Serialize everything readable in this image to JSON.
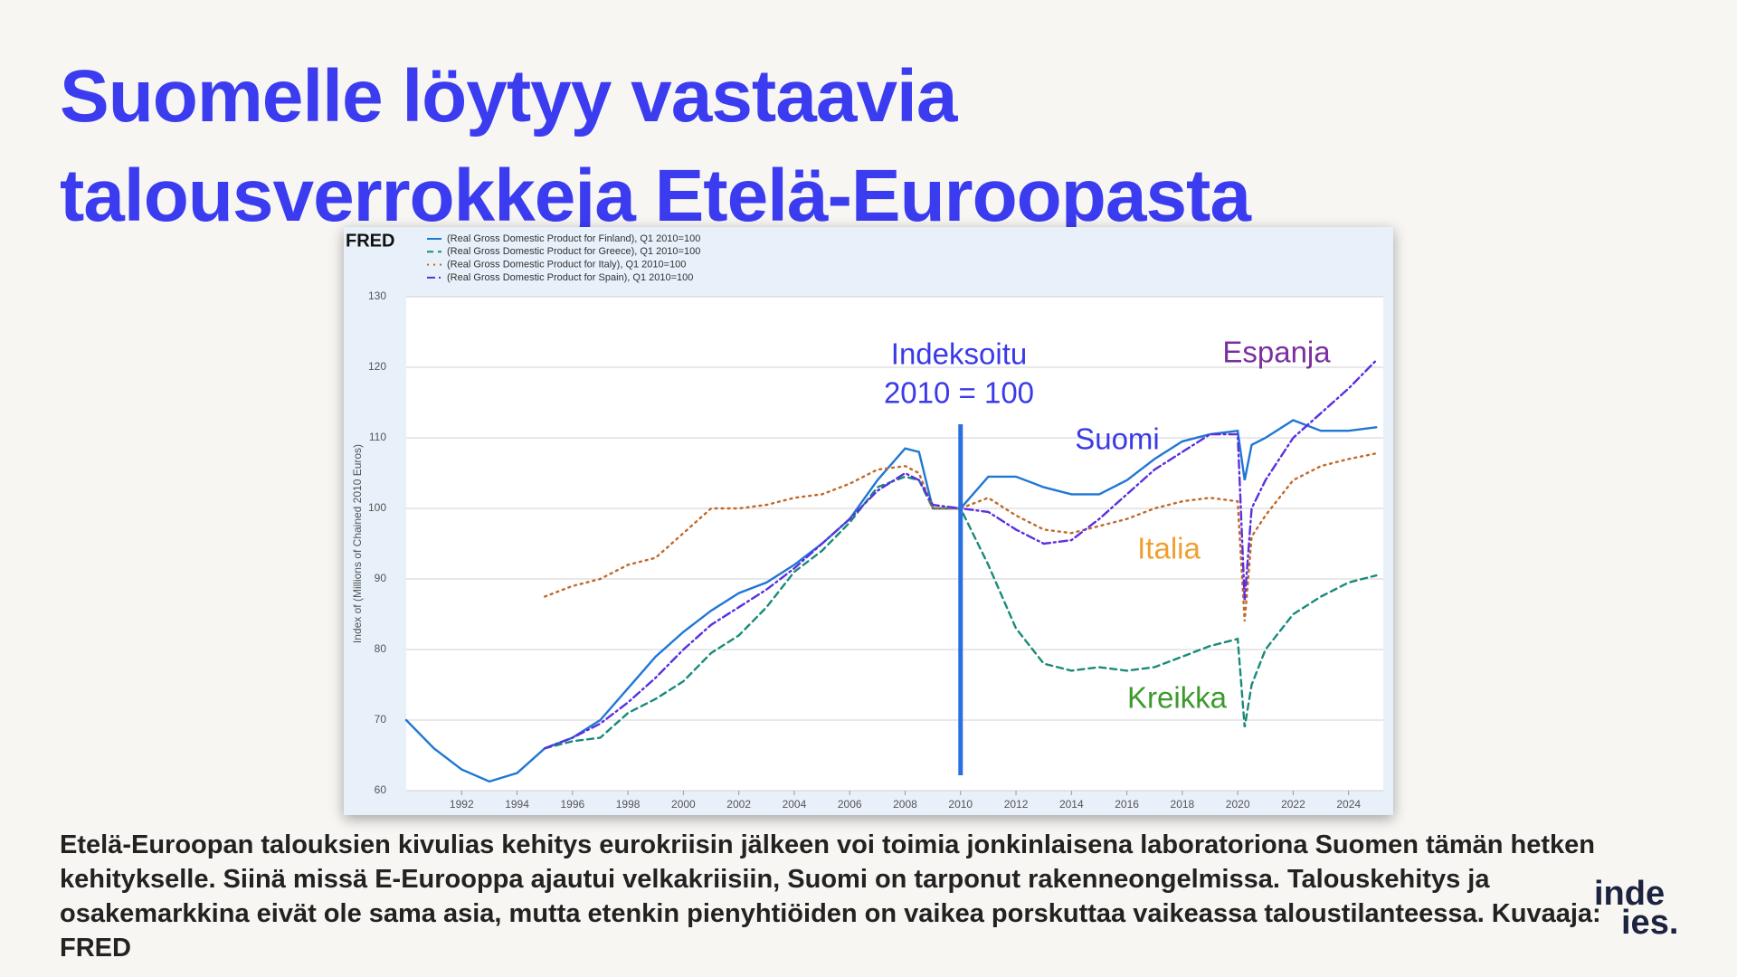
{
  "slide": {
    "title": [
      "Suomelle löytyy vastaavia",
      "talousverrokkeja Etelä-Euroopasta"
    ],
    "body": "Etelä-Euroopan talouksien kivulias kehitys eurokriisin jälkeen voi toimia jonkinlaisena laboratoriona Suomen tämän hetken kehitykselle. Siinä missä E-Eurooppa ajautui velkakriisiin, Suomi on tarponut rakenneongelmissa. Talouskehitys ja osakemarkkina eivät ole sama asia, mutta etenkin pienyhtiöiden on vaikea porskuttaa vaikeassa taloustilanteessa. Kuvaaja: FRED",
    "logo": [
      "inde",
      "ies."
    ]
  },
  "chart_data": {
    "type": "line",
    "brand": "FRED",
    "y_label": "Index of (Millions of Chained 2010 Euros)",
    "x": [
      1990,
      1991,
      1992,
      1993,
      1994,
      1995,
      1996,
      1997,
      1998,
      1999,
      2000,
      2001,
      2002,
      2003,
      2004,
      2005,
      2006,
      2007,
      2008,
      2008.5,
      2009,
      2010,
      2011,
      2012,
      2013,
      2014,
      2015,
      2016,
      2017,
      2018,
      2019,
      2020,
      2020.25,
      2020.5,
      2021,
      2022,
      2023,
      2024,
      2025
    ],
    "series": [
      {
        "name": "(Real Gross Domestic Product for Finland), Q1 2010=100",
        "color": "#1f77d4",
        "style": "solid",
        "values": [
          70,
          66,
          63,
          61.3,
          62.5,
          66,
          67.5,
          70,
          74.5,
          79,
          82.5,
          85.5,
          88,
          89.5,
          92,
          95,
          98.5,
          104,
          108.5,
          108,
          100,
          100,
          104.5,
          104.5,
          103,
          102,
          102,
          104,
          107,
          109.5,
          110.5,
          111,
          104,
          109,
          110,
          112.5,
          111,
          111,
          111.5
        ]
      },
      {
        "name": "(Real Gross Domestic Product for Greece), Q1 2010=100",
        "color": "#1a8a7a",
        "style": "dashed",
        "values": [
          null,
          null,
          null,
          null,
          null,
          66,
          67,
          67.5,
          71,
          73,
          75.5,
          79.5,
          82,
          86,
          91,
          94,
          98,
          103,
          104.5,
          104,
          100,
          100,
          92,
          83,
          78,
          77,
          77.5,
          77,
          77.5,
          79,
          80.5,
          81.5,
          69,
          75,
          80,
          85,
          87.5,
          89.5,
          90.5
        ]
      },
      {
        "name": "(Real Gross Domestic Product for Italy), Q1 2010=100",
        "color": "#c0692a",
        "style": "dotted",
        "values": [
          null,
          null,
          null,
          null,
          null,
          87.5,
          89,
          90,
          92,
          93,
          96.5,
          100,
          100,
          100.5,
          101.5,
          102,
          103.5,
          105.5,
          106,
          105,
          100,
          100,
          101.5,
          99,
          97,
          96.5,
          97.5,
          98.5,
          100,
          101,
          101.5,
          101,
          84,
          96,
          99,
          104,
          106,
          107,
          107.8
        ]
      },
      {
        "name": "(Real Gross Domestic Product for Spain), Q1 2010=100",
        "color": "#5b2fe0",
        "style": "dashdot",
        "values": [
          null,
          null,
          null,
          null,
          null,
          66,
          67.5,
          69.5,
          72.5,
          76,
          80,
          83.5,
          86,
          88.5,
          91.5,
          95,
          98.5,
          102.5,
          105,
          104,
          100.5,
          100,
          99.5,
          97,
          95,
          95.5,
          98.5,
          102,
          105.5,
          108,
          110.5,
          110.5,
          87,
          100,
          104,
          110,
          113.5,
          117,
          121
        ]
      }
    ],
    "xlim": [
      1990,
      2025.25
    ],
    "xticks": [
      1992,
      1994,
      1996,
      1998,
      2000,
      2002,
      2004,
      2006,
      2008,
      2010,
      2012,
      2014,
      2016,
      2018,
      2020,
      2022,
      2024
    ],
    "ylim": [
      60,
      130
    ],
    "yticks": [
      60,
      70,
      80,
      90,
      100,
      110,
      120,
      130
    ],
    "grid": true,
    "vline": 2010,
    "annotations": [
      {
        "text": "Indeksoitu",
        "color": "#3a3ae8"
      },
      {
        "text": "2010 = 100",
        "color": "#3a3ae8"
      },
      {
        "text": "Espanja",
        "color": "#7b2fa0"
      },
      {
        "text": "Suomi",
        "color": "#3a3ae8"
      },
      {
        "text": "Italia",
        "color": "#f0a030"
      },
      {
        "text": "Kreikka",
        "color": "#3c9a2c"
      }
    ]
  }
}
